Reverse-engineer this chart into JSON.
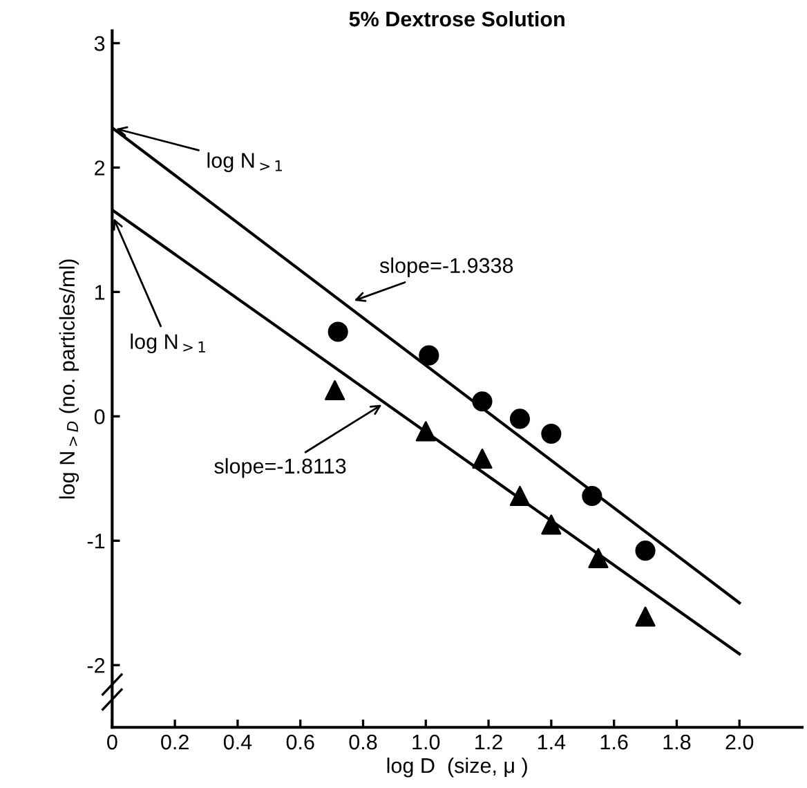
{
  "chart_data": {
    "type": "scatter",
    "title": "5% Dextrose Solution",
    "xlabel": "log D  (size, μ )",
    "ylabel": "log N$_{>D}$ (no. particles/ml)",
    "xlim": [
      0,
      2.2
    ],
    "ylim": [
      -2.5,
      3.1
    ],
    "xticks": [
      0,
      0.2,
      0.4,
      0.6,
      0.8,
      {
        "value": 1,
        "label": "1.0"
      },
      1.2,
      1.4,
      1.6,
      1.8,
      {
        "value": 2,
        "label": "2.0"
      }
    ],
    "yticks": [
      -2,
      -1,
      0,
      1,
      2,
      3
    ],
    "series": [
      {
        "marker": "circle",
        "color": "#000000",
        "x": [
          0.72,
          1.01,
          1.18,
          1.3,
          1.4,
          1.53,
          1.7
        ],
        "values": [
          0.68,
          0.49,
          0.12,
          -0.02,
          -0.14,
          -0.64,
          -1.08
        ]
      },
      {
        "marker": "triangle",
        "color": "#000000",
        "x": [
          0.71,
          1.0,
          1.18,
          1.3,
          1.4,
          1.55,
          1.7
        ],
        "values": [
          0.21,
          -0.12,
          -0.34,
          -0.64,
          -0.87,
          -1.14,
          -1.61
        ]
      },
      {
        "type": "line",
        "marker": "none",
        "line_style": "solid",
        "color": "#000000",
        "x": [
          0,
          2.0
        ],
        "values": [
          2.32,
          -1.5
        ]
      },
      {
        "type": "line",
        "marker": "none",
        "line_style": "solid",
        "color": "#000000",
        "x": [
          0,
          2.0
        ],
        "values": [
          1.66,
          -1.91
        ]
      }
    ],
    "annotations": [
      {
        "text": "log N$_{>1}$",
        "x": 0,
        "y": 2.32
      },
      {
        "text": "log N$_{>1}$",
        "x": 0,
        "y": 1.62
      },
      {
        "text": "slope=-1.9338",
        "x": 0.76,
        "y": 0.92
      },
      {
        "text": "slope=-1.8113",
        "x": 0.87,
        "y": 0.11
      }
    ],
    "grid": false
  }
}
